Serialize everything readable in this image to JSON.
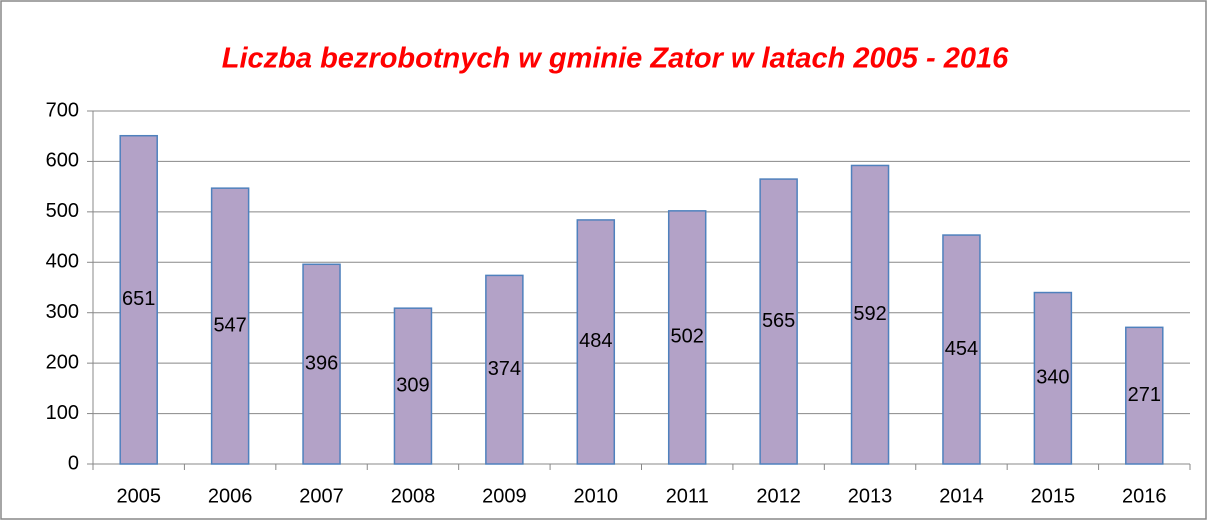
{
  "chart_data": {
    "type": "bar",
    "title": "Liczba bezrobotnych w gminie Zator w latach 2005 - 2016",
    "categories": [
      "2005",
      "2006",
      "2007",
      "2008",
      "2009",
      "2010",
      "2011",
      "2012",
      "2013",
      "2014",
      "2015",
      "2016"
    ],
    "values": [
      651,
      547,
      396,
      309,
      374,
      484,
      502,
      565,
      592,
      454,
      340,
      271
    ],
    "color": "#b3a2c7",
    "edge_color": "#4f81bd",
    "ylim": [
      0,
      700
    ],
    "yticks": [
      0,
      100,
      200,
      300,
      400,
      500,
      600,
      700
    ],
    "grid": true
  }
}
